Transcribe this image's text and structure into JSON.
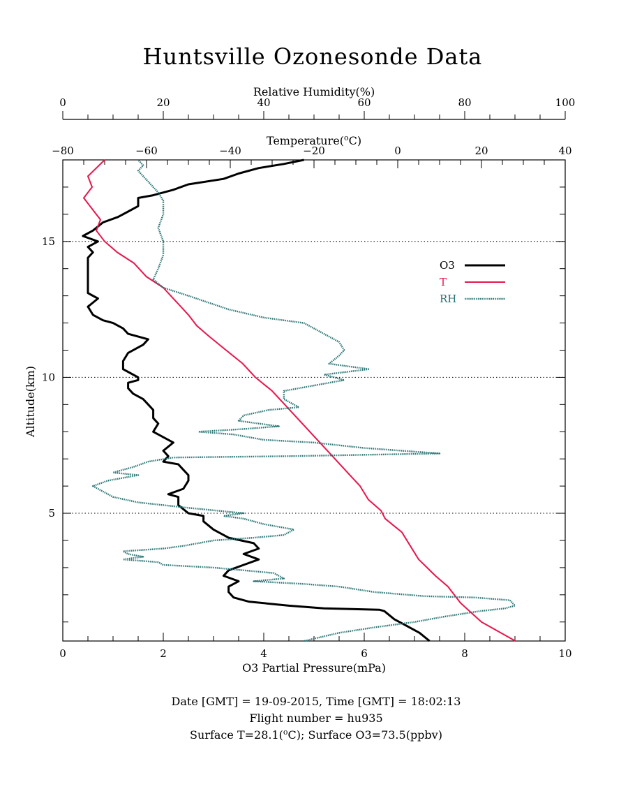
{
  "colors": {
    "o3": "#000000",
    "temperature": "#e8154b",
    "rh": "#2a7474",
    "axis": "#000000",
    "grid": "#000000"
  },
  "chart_data": {
    "type": "line",
    "title": "Huntsville Ozonesonde Data",
    "ylabel": "Altitude(km)",
    "ylim": [
      0.3,
      18
    ],
    "yticks": [
      5,
      10,
      15
    ],
    "gridlines_y": [
      5,
      10,
      15
    ],
    "grid_style": "dotted horizontal lines at 5, 10, 15 km",
    "legend": {
      "placement": "right",
      "entries": [
        "O3",
        "T",
        "RH"
      ]
    },
    "axes": {
      "o3": {
        "label": "O3 Partial Pressure(mPa)",
        "position": "bottom",
        "range": [
          0,
          10
        ],
        "ticks": [
          0,
          2,
          4,
          6,
          8,
          10
        ]
      },
      "temperature": {
        "label_prefix": "Temperature(",
        "label_sup": "o",
        "label_suffix": "C)",
        "position": "top-inner",
        "range": [
          -80,
          40
        ],
        "ticks": [
          -80,
          -60,
          -40,
          -20,
          0,
          20,
          40
        ]
      },
      "rh": {
        "label": "Relative Humidity(%)",
        "position": "top-outer",
        "range": [
          0,
          100
        ],
        "ticks": [
          0,
          20,
          40,
          60,
          80,
          100
        ]
      }
    },
    "series": [
      {
        "name": "O3",
        "axis": "o3",
        "points": [
          [
            7.3,
            0.3
          ],
          [
            7.1,
            0.6
          ],
          [
            6.8,
            0.9
          ],
          [
            6.6,
            1.1
          ],
          [
            6.4,
            1.4
          ],
          [
            6.3,
            1.45
          ],
          [
            5.2,
            1.5
          ],
          [
            4.5,
            1.6
          ],
          [
            3.7,
            1.75
          ],
          [
            3.4,
            1.9
          ],
          [
            3.3,
            2.1
          ],
          [
            3.3,
            2.3
          ],
          [
            3.5,
            2.5
          ],
          [
            3.2,
            2.7
          ],
          [
            3.3,
            2.9
          ],
          [
            3.6,
            3.1
          ],
          [
            3.9,
            3.3
          ],
          [
            3.6,
            3.5
          ],
          [
            3.9,
            3.7
          ],
          [
            3.8,
            3.9
          ],
          [
            3.3,
            4.1
          ],
          [
            3.2,
            4.2
          ],
          [
            3.0,
            4.4
          ],
          [
            2.8,
            4.7
          ],
          [
            2.8,
            4.9
          ],
          [
            2.5,
            5.0
          ],
          [
            2.3,
            5.3
          ],
          [
            2.3,
            5.6
          ],
          [
            2.1,
            5.7
          ],
          [
            2.4,
            5.9
          ],
          [
            2.5,
            6.2
          ],
          [
            2.5,
            6.4
          ],
          [
            2.4,
            6.6
          ],
          [
            2.3,
            6.8
          ],
          [
            2.0,
            6.9
          ],
          [
            2.1,
            7.1
          ],
          [
            2.0,
            7.3
          ],
          [
            2.2,
            7.6
          ],
          [
            2.0,
            7.8
          ],
          [
            1.8,
            8.0
          ],
          [
            1.9,
            8.3
          ],
          [
            1.8,
            8.5
          ],
          [
            1.8,
            8.8
          ],
          [
            1.7,
            9.0
          ],
          [
            1.6,
            9.2
          ],
          [
            1.4,
            9.4
          ],
          [
            1.3,
            9.6
          ],
          [
            1.3,
            9.8
          ],
          [
            1.5,
            9.9
          ],
          [
            1.5,
            10.0
          ],
          [
            1.4,
            10.1
          ],
          [
            1.2,
            10.3
          ],
          [
            1.2,
            10.6
          ],
          [
            1.3,
            10.9
          ],
          [
            1.6,
            11.2
          ],
          [
            1.7,
            11.4
          ],
          [
            1.3,
            11.6
          ],
          [
            1.2,
            11.8
          ],
          [
            1.0,
            12.0
          ],
          [
            0.8,
            12.1
          ],
          [
            0.6,
            12.3
          ],
          [
            0.5,
            12.6
          ],
          [
            0.7,
            12.9
          ],
          [
            0.5,
            13.1
          ],
          [
            0.5,
            13.5
          ],
          [
            0.5,
            14.0
          ],
          [
            0.5,
            14.4
          ],
          [
            0.6,
            14.6
          ],
          [
            0.5,
            14.8
          ],
          [
            0.7,
            15.0
          ],
          [
            0.4,
            15.2
          ],
          [
            0.6,
            15.4
          ],
          [
            0.8,
            15.7
          ],
          [
            1.1,
            15.9
          ],
          [
            1.3,
            16.1
          ],
          [
            1.5,
            16.3
          ],
          [
            1.5,
            16.6
          ],
          [
            1.8,
            16.7
          ],
          [
            2.0,
            16.8
          ],
          [
            2.2,
            16.9
          ],
          [
            2.5,
            17.1
          ],
          [
            3.2,
            17.3
          ],
          [
            3.5,
            17.5
          ],
          [
            3.9,
            17.7
          ],
          [
            4.4,
            17.85
          ],
          [
            4.8,
            18.0
          ]
        ]
      },
      {
        "name": "T",
        "axis": "temperature",
        "points": [
          [
            28.1,
            0.3
          ],
          [
            20.0,
            1.0
          ],
          [
            15.0,
            1.7
          ],
          [
            12.0,
            2.3
          ],
          [
            9.0,
            2.7
          ],
          [
            7.0,
            3.0
          ],
          [
            5.0,
            3.3
          ],
          [
            3.0,
            3.8
          ],
          [
            1.0,
            4.3
          ],
          [
            -3.0,
            4.8
          ],
          [
            -4.0,
            5.1
          ],
          [
            -7.0,
            5.5
          ],
          [
            -9.0,
            6.0
          ],
          [
            -12.0,
            6.5
          ],
          [
            -15.0,
            7.0
          ],
          [
            -18.0,
            7.5
          ],
          [
            -21.0,
            8.0
          ],
          [
            -24.0,
            8.5
          ],
          [
            -27.0,
            9.0
          ],
          [
            -30.0,
            9.5
          ],
          [
            -34.0,
            10.0
          ],
          [
            -37.0,
            10.5
          ],
          [
            -41.0,
            11.0
          ],
          [
            -45.0,
            11.5
          ],
          [
            -48.0,
            11.9
          ],
          [
            -50.0,
            12.3
          ],
          [
            -53.0,
            12.8
          ],
          [
            -56.0,
            13.3
          ],
          [
            -60.0,
            13.7
          ],
          [
            -63.0,
            14.2
          ],
          [
            -67.0,
            14.6
          ],
          [
            -70.0,
            15.0
          ],
          [
            -72.0,
            15.4
          ],
          [
            -71.0,
            15.8
          ],
          [
            -73.0,
            16.2
          ],
          [
            -75.0,
            16.6
          ],
          [
            -73.0,
            17.0
          ],
          [
            -74.0,
            17.4
          ],
          [
            -72.0,
            17.7
          ],
          [
            -70.0,
            18.0
          ]
        ]
      },
      {
        "name": "RH",
        "axis": "rh",
        "points": [
          [
            48,
            0.3
          ],
          [
            55,
            0.6
          ],
          [
            62,
            0.8
          ],
          [
            70,
            1.0
          ],
          [
            76,
            1.2
          ],
          [
            83,
            1.4
          ],
          [
            88,
            1.5
          ],
          [
            90,
            1.6
          ],
          [
            89,
            1.8
          ],
          [
            82,
            1.9
          ],
          [
            72,
            1.95
          ],
          [
            62,
            2.1
          ],
          [
            55,
            2.3
          ],
          [
            48,
            2.4
          ],
          [
            38,
            2.5
          ],
          [
            44,
            2.6
          ],
          [
            42,
            2.8
          ],
          [
            30,
            3.0
          ],
          [
            20,
            3.1
          ],
          [
            19,
            3.2
          ],
          [
            12,
            3.3
          ],
          [
            16,
            3.4
          ],
          [
            13,
            3.5
          ],
          [
            12,
            3.6
          ],
          [
            20,
            3.7
          ],
          [
            24,
            3.8
          ],
          [
            30,
            4.0
          ],
          [
            38,
            4.1
          ],
          [
            44,
            4.2
          ],
          [
            46,
            4.4
          ],
          [
            40,
            4.6
          ],
          [
            36,
            4.8
          ],
          [
            32,
            4.9
          ],
          [
            36,
            5.0
          ],
          [
            25,
            5.2
          ],
          [
            15,
            5.4
          ],
          [
            10,
            5.6
          ],
          [
            8,
            5.8
          ],
          [
            6,
            6.0
          ],
          [
            9,
            6.2
          ],
          [
            15,
            6.4
          ],
          [
            10,
            6.5
          ],
          [
            14,
            6.7
          ],
          [
            17,
            6.9
          ],
          [
            22,
            7.05
          ],
          [
            45,
            7.1
          ],
          [
            75,
            7.2
          ],
          [
            60,
            7.4
          ],
          [
            50,
            7.6
          ],
          [
            40,
            7.7
          ],
          [
            34,
            7.9
          ],
          [
            27,
            8.0
          ],
          [
            36,
            8.1
          ],
          [
            43,
            8.2
          ],
          [
            35,
            8.4
          ],
          [
            36,
            8.6
          ],
          [
            41,
            8.8
          ],
          [
            47,
            8.9
          ],
          [
            44,
            9.2
          ],
          [
            44,
            9.5
          ],
          [
            50,
            9.7
          ],
          [
            56,
            9.9
          ],
          [
            52,
            10.1
          ],
          [
            61,
            10.3
          ],
          [
            53,
            10.5
          ],
          [
            55,
            10.8
          ],
          [
            56,
            11.0
          ],
          [
            55,
            11.3
          ],
          [
            51,
            11.7
          ],
          [
            48,
            12.0
          ],
          [
            40,
            12.2
          ],
          [
            33,
            12.5
          ],
          [
            25,
            13.0
          ],
          [
            20,
            13.3
          ],
          [
            18,
            13.6
          ],
          [
            19,
            14.0
          ],
          [
            20,
            14.5
          ],
          [
            20,
            15.0
          ],
          [
            19,
            15.5
          ],
          [
            20,
            16.0
          ],
          [
            20,
            16.5
          ],
          [
            19,
            16.8
          ],
          [
            17,
            17.2
          ],
          [
            15,
            17.6
          ],
          [
            16,
            17.8
          ],
          [
            15,
            18.0
          ]
        ]
      }
    ]
  },
  "footer": {
    "line1": "Date [GMT] = 19-09-2015,  Time [GMT] = 18:02:13",
    "line2": "Flight number = hu935",
    "line3_a": "Surface T=28.1(",
    "line3_sup": "o",
    "line3_b": "C); Surface O3=73.5(ppbv)"
  }
}
